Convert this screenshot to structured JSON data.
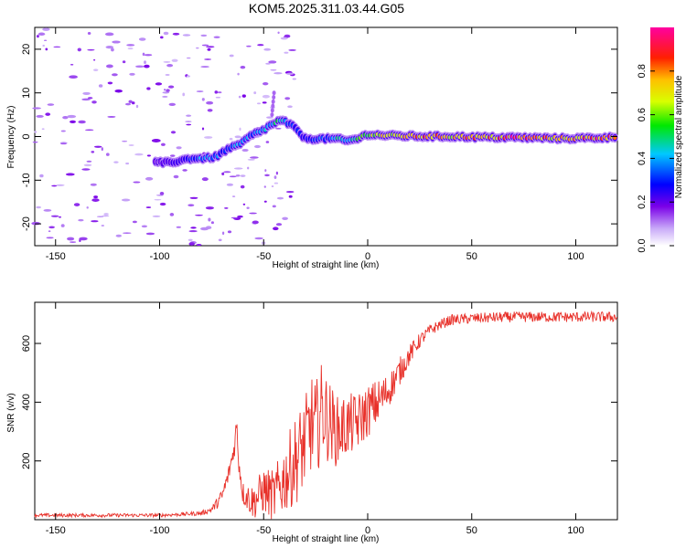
{
  "title": "KOM5.2025.311.03.44.G05",
  "chart_data": [
    {
      "type": "heatmap",
      "xlabel": "Height of straight line (km)",
      "ylabel": "Frequency (Hz)",
      "xlim": [
        -160,
        120
      ],
      "ylim": [
        -25,
        25
      ],
      "xticks": [
        -150,
        -100,
        -50,
        0,
        50,
        100
      ],
      "yticks": [
        -20,
        -10,
        0,
        10,
        20
      ],
      "ridge": {
        "x": [
          -102,
          -95,
          -85,
          -78,
          -72,
          -68,
          -62,
          -58,
          -55,
          -50,
          -47,
          -43,
          -40,
          -35,
          -30,
          -25,
          -20,
          -15,
          -10,
          -5,
          0,
          10,
          20,
          30,
          40,
          50,
          60,
          70,
          80,
          90,
          100,
          110,
          118
        ],
        "freq": [
          -6,
          -6,
          -5,
          -5,
          -4.5,
          -3,
          -2,
          -0.5,
          0.5,
          1.5,
          2.5,
          3.5,
          3.5,
          2,
          -0.5,
          -0.5,
          -0.5,
          -0.5,
          -1,
          -0.5,
          0.5,
          0.2,
          0.1,
          0,
          0,
          -0.1,
          -0.2,
          -0.2,
          -0.3,
          -0.4,
          -0.4,
          -0.3,
          -0.2
        ],
        "amplitude": [
          0.15,
          0.2,
          0.3,
          0.4,
          0.35,
          0.3,
          0.45,
          0.4,
          0.3,
          0.45,
          0.35,
          0.5,
          0.4,
          0.3,
          0.25,
          0.35,
          0.3,
          0.45,
          0.4,
          0.5,
          0.6,
          0.7,
          0.75,
          0.8,
          0.7,
          0.8,
          0.75,
          0.85,
          0.8,
          0.7,
          0.75,
          0.8,
          0.85
        ]
      },
      "colorbar": {
        "label": "Normalized spectral amplitude",
        "range": [
          0,
          1
        ],
        "ticks": [
          "0.0",
          "0.2",
          "0.4",
          "0.6",
          "0.8"
        ],
        "tick_values": [
          0,
          0.2,
          0.4,
          0.6,
          0.8
        ]
      }
    },
    {
      "type": "line",
      "xlabel": "Height of straight line (km)",
      "ylabel": "SNR (v/v)",
      "xlim": [
        -160,
        120
      ],
      "ylim": [
        0,
        740
      ],
      "xticks": [
        -150,
        -100,
        -50,
        0,
        50,
        100
      ],
      "yticks": [
        200,
        400,
        600
      ],
      "series": [
        {
          "name": "SNR",
          "color": "#e8312a",
          "x": [
            -160,
            -140,
            -120,
            -100,
            -90,
            -80,
            -75,
            -72,
            -70,
            -67,
            -64,
            -63,
            -62,
            -60,
            -55,
            -50,
            -45,
            -40,
            -35,
            -30,
            -27,
            -25,
            -22,
            -20,
            -15,
            -10,
            -5,
            0,
            5,
            10,
            15,
            20,
            25,
            30,
            35,
            40,
            50,
            60,
            70,
            80,
            90,
            100,
            110,
            120
          ],
          "y": [
            15,
            15,
            15,
            15,
            18,
            22,
            35,
            60,
            80,
            150,
            250,
            330,
            200,
            90,
            60,
            100,
            80,
            140,
            200,
            260,
            330,
            300,
            380,
            350,
            300,
            320,
            330,
            370,
            400,
            440,
            500,
            560,
            610,
            645,
            665,
            680,
            685,
            688,
            690,
            690,
            690,
            690,
            690,
            690
          ],
          "noise": [
            6,
            6,
            6,
            6,
            6,
            8,
            10,
            20,
            25,
            30,
            35,
            40,
            40,
            40,
            60,
            80,
            90,
            120,
            150,
            160,
            170,
            170,
            160,
            150,
            120,
            110,
            100,
            90,
            80,
            60,
            50,
            35,
            25,
            20,
            18,
            18,
            18,
            18,
            18,
            18,
            18,
            18,
            18,
            18
          ]
        }
      ]
    }
  ]
}
